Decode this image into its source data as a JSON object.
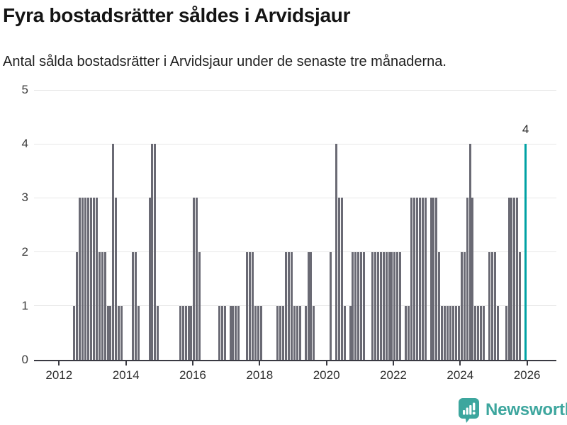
{
  "header": {
    "title": "Fyra bostadsrätter såldes i Arvidsjaur",
    "subtitle": "Antal sålda bostadsrätter i Arvidsjaur under de senaste tre månaderna."
  },
  "chart_data": {
    "type": "bar",
    "title": "Fyra bostadsrätter såldes i Arvidsjaur",
    "subtitle": "Antal sålda bostadsrätter i Arvidsjaur under de senaste tre månaderna.",
    "xlabel": "",
    "ylabel": "",
    "ylim": [
      0,
      5
    ],
    "grid": "horizontal",
    "y_ticks": [
      0,
      1,
      2,
      3,
      4,
      5
    ],
    "x_tick_labels": [
      "2012",
      "2014",
      "2016",
      "2018",
      "2020",
      "2022",
      "2024",
      "2026"
    ],
    "start_month": "2012-01",
    "end_month": "2025-12",
    "values": [
      0,
      0,
      0,
      0,
      0,
      1,
      2,
      3,
      3,
      3,
      3,
      3,
      3,
      3,
      2,
      2,
      2,
      1,
      1,
      4,
      3,
      1,
      1,
      0,
      0,
      0,
      2,
      2,
      1,
      0,
      0,
      0,
      3,
      4,
      4,
      1,
      0,
      0,
      0,
      0,
      0,
      0,
      0,
      1,
      1,
      1,
      1,
      1,
      3,
      3,
      2,
      0,
      0,
      0,
      0,
      0,
      0,
      1,
      1,
      1,
      0,
      1,
      1,
      1,
      1,
      0,
      0,
      2,
      2,
      2,
      1,
      1,
      1,
      0,
      0,
      0,
      0,
      0,
      1,
      1,
      1,
      2,
      2,
      2,
      1,
      1,
      1,
      0,
      1,
      2,
      2,
      1,
      0,
      0,
      0,
      0,
      0,
      2,
      0,
      4,
      3,
      3,
      1,
      0,
      1,
      2,
      2,
      2,
      2,
      2,
      0,
      0,
      2,
      2,
      2,
      2,
      2,
      2,
      2,
      2,
      2,
      2,
      2,
      0,
      1,
      1,
      3,
      3,
      3,
      3,
      3,
      3,
      0,
      3,
      3,
      3,
      2,
      1,
      1,
      1,
      1,
      1,
      1,
      1,
      2,
      2,
      3,
      4,
      3,
      1,
      1,
      1,
      1,
      0,
      2,
      2,
      2,
      1,
      0,
      0,
      1,
      3,
      3,
      3,
      3,
      2,
      0,
      4
    ],
    "bar_color": "#6a6a74",
    "highlight": {
      "index": 167,
      "color": "#00a2a4",
      "label": "4"
    }
  },
  "footer": {
    "brand": "Newsworthy",
    "brand_color": "#3da69e"
  }
}
